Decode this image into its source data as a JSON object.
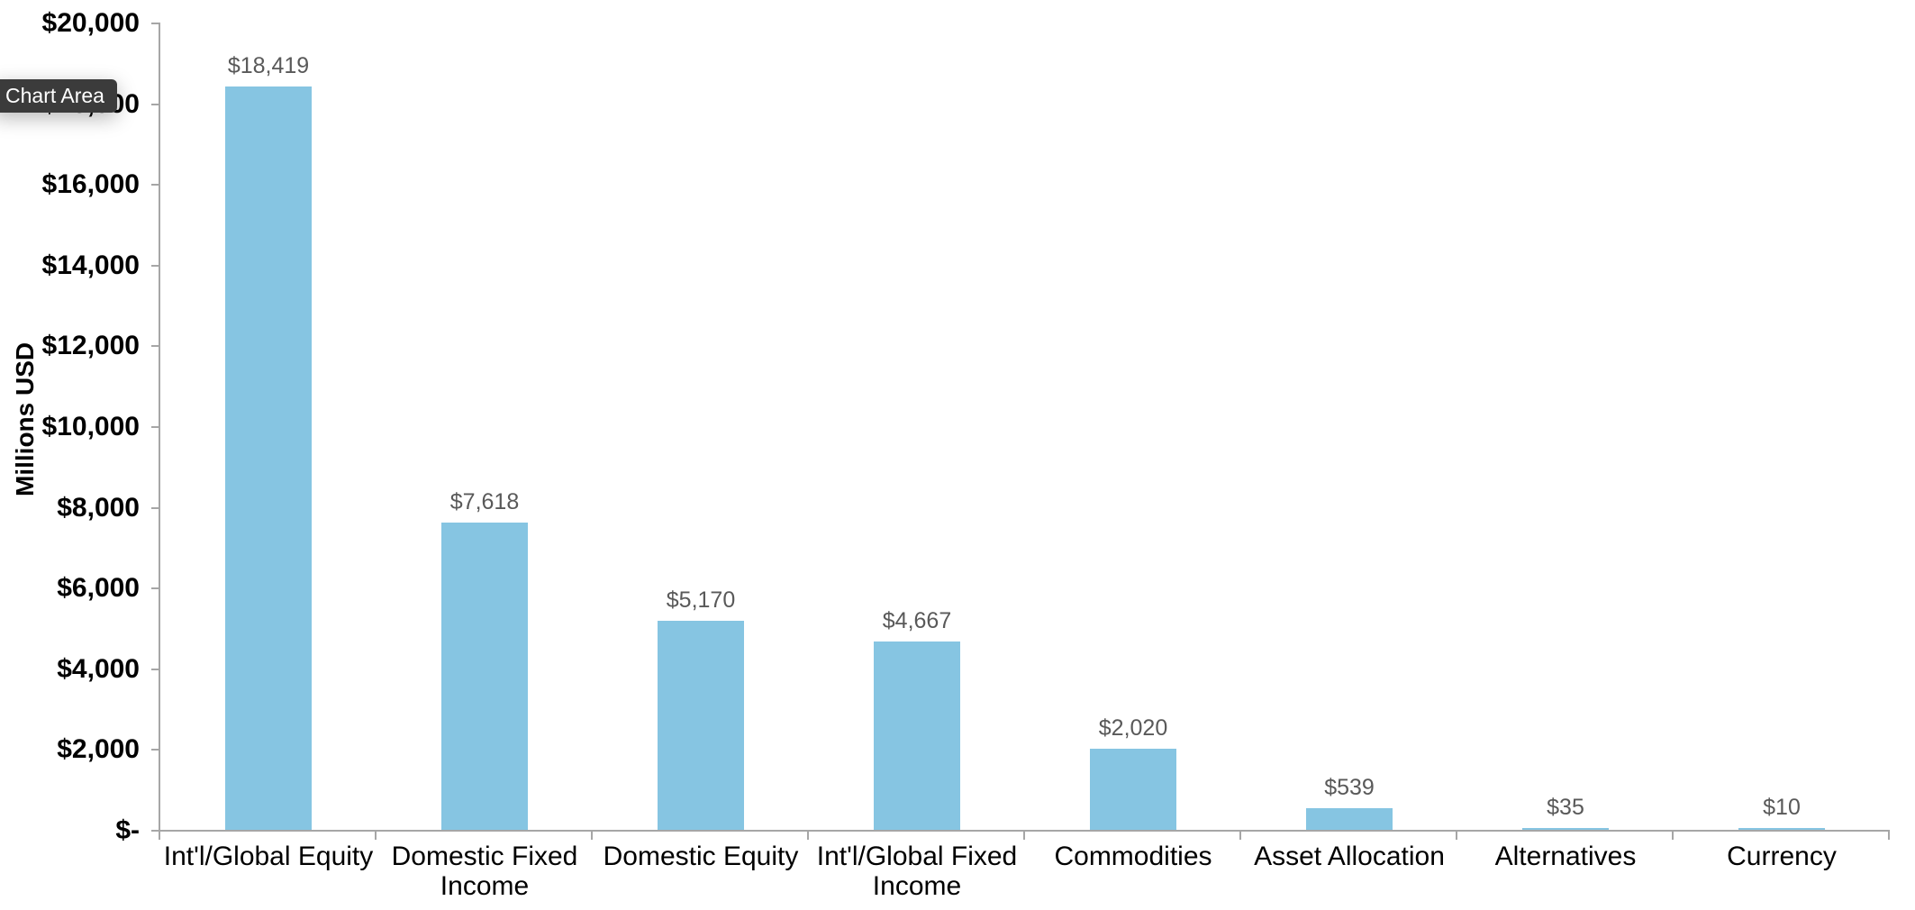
{
  "tooltip": {
    "label": "Chart Area"
  },
  "chart_data": {
    "type": "bar",
    "title": "",
    "xlabel": "",
    "ylabel": "Millions USD",
    "categories": [
      "Int'l/Global Equity",
      "Domestic Fixed Income",
      "Domestic Equity",
      "Int'l/Global Fixed Income",
      "Commodities",
      "Asset Allocation",
      "Alternatives",
      "Currency"
    ],
    "values": [
      18419,
      7618,
      5170,
      4667,
      2020,
      539,
      35,
      10
    ],
    "data_labels": [
      "$18,419",
      "$7,618",
      "$5,170",
      "$4,667",
      "$2,020",
      "$539",
      "$35",
      "$10"
    ],
    "ylim": [
      0,
      20000
    ],
    "y_tick_step": 2000,
    "y_tick_labels_top_to_bottom": [
      "$20,000",
      "$18,000",
      "$16,000",
      "$14,000",
      "$12,000",
      "$10,000",
      "$8,000",
      "$6,000",
      "$4,000",
      "$2,000",
      "$-"
    ],
    "grid": false,
    "legend": "none",
    "bar_color": "#86C5E2",
    "axis_color": "#A6A6A6",
    "data_label_color": "#595959",
    "category_label_color": "#000000",
    "tooltip_bg_color": "#3B3B3B",
    "tooltip_text_color": "#FFFFFF"
  }
}
